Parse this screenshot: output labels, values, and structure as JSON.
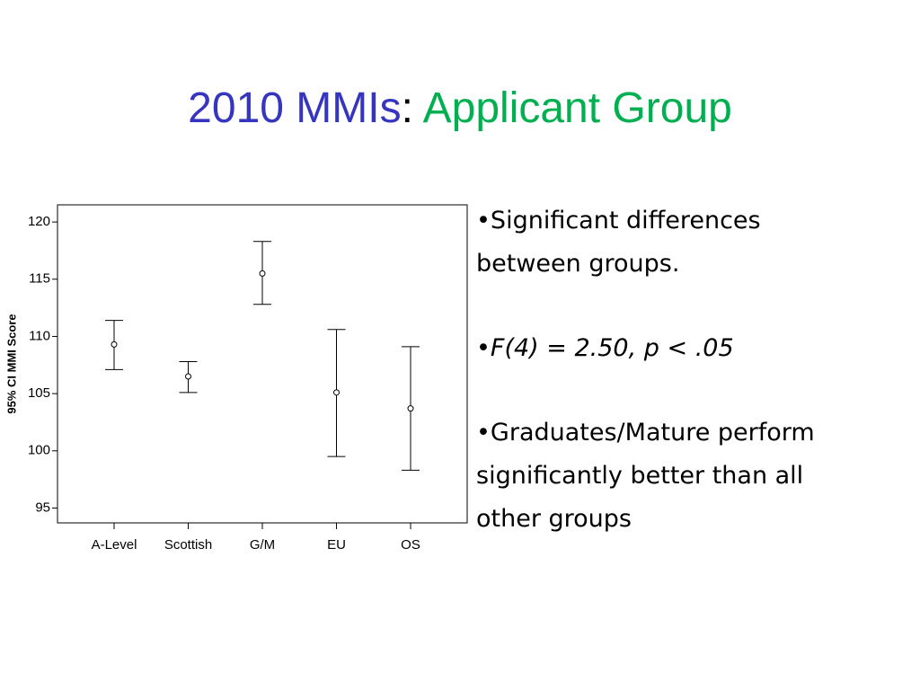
{
  "title": [
    {
      "text": "2010 MMIs",
      "color": "#3535c0"
    },
    {
      "text": ":",
      "color": "#000000"
    },
    {
      "text": " Applicant Group",
      "color": "#00b050"
    }
  ],
  "bullets": [
    "•Significant differences between groups.",
    "•F(4) = 2.50, p < .05",
    "•Graduates/Mature perform significantly better than all other groups"
  ],
  "chart_data": {
    "type": "errorbar",
    "y_label": "95% CI MMI Score",
    "categories": [
      "A-Level",
      "Scottish",
      "G/M",
      "EU",
      "OS"
    ],
    "values": [
      109.3,
      106.5,
      115.5,
      105.1,
      103.7
    ],
    "lower": [
      107.1,
      105.1,
      112.8,
      99.5,
      98.3
    ],
    "upper": [
      111.4,
      107.8,
      118.3,
      110.6,
      109.1
    ],
    "color": "#000000",
    "ylim": [
      93.7,
      121.5
    ],
    "yticks": [
      95,
      100,
      105,
      110,
      115,
      120
    ]
  }
}
